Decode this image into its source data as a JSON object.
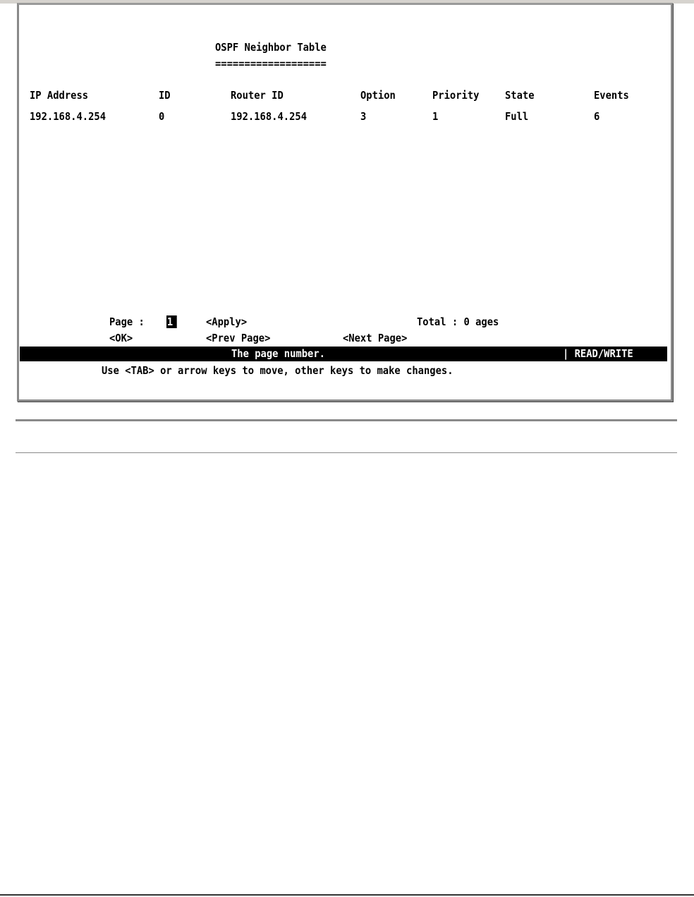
{
  "title": "OSPF Neighbor Table",
  "underline": "===================",
  "table": {
    "headers": [
      "IP Address",
      "ID",
      "Router ID",
      "Option",
      "Priority",
      "State",
      "Events"
    ],
    "rows": [
      [
        "192.168.4.254",
        "0",
        "192.168.4.254",
        "3",
        "1",
        "Full",
        "6"
      ]
    ]
  },
  "controls": {
    "page_label": "Page :",
    "page_value": "1",
    "apply": "<Apply>",
    "total": "Total : 0 ages",
    "ok": "<OK>",
    "prev": "<Prev Page>",
    "next": "<Next Page>"
  },
  "status": {
    "message": "The page number.",
    "mode": "| READ/WRITE"
  },
  "help": "Use <TAB> or arrow keys to move, other keys to make changes."
}
